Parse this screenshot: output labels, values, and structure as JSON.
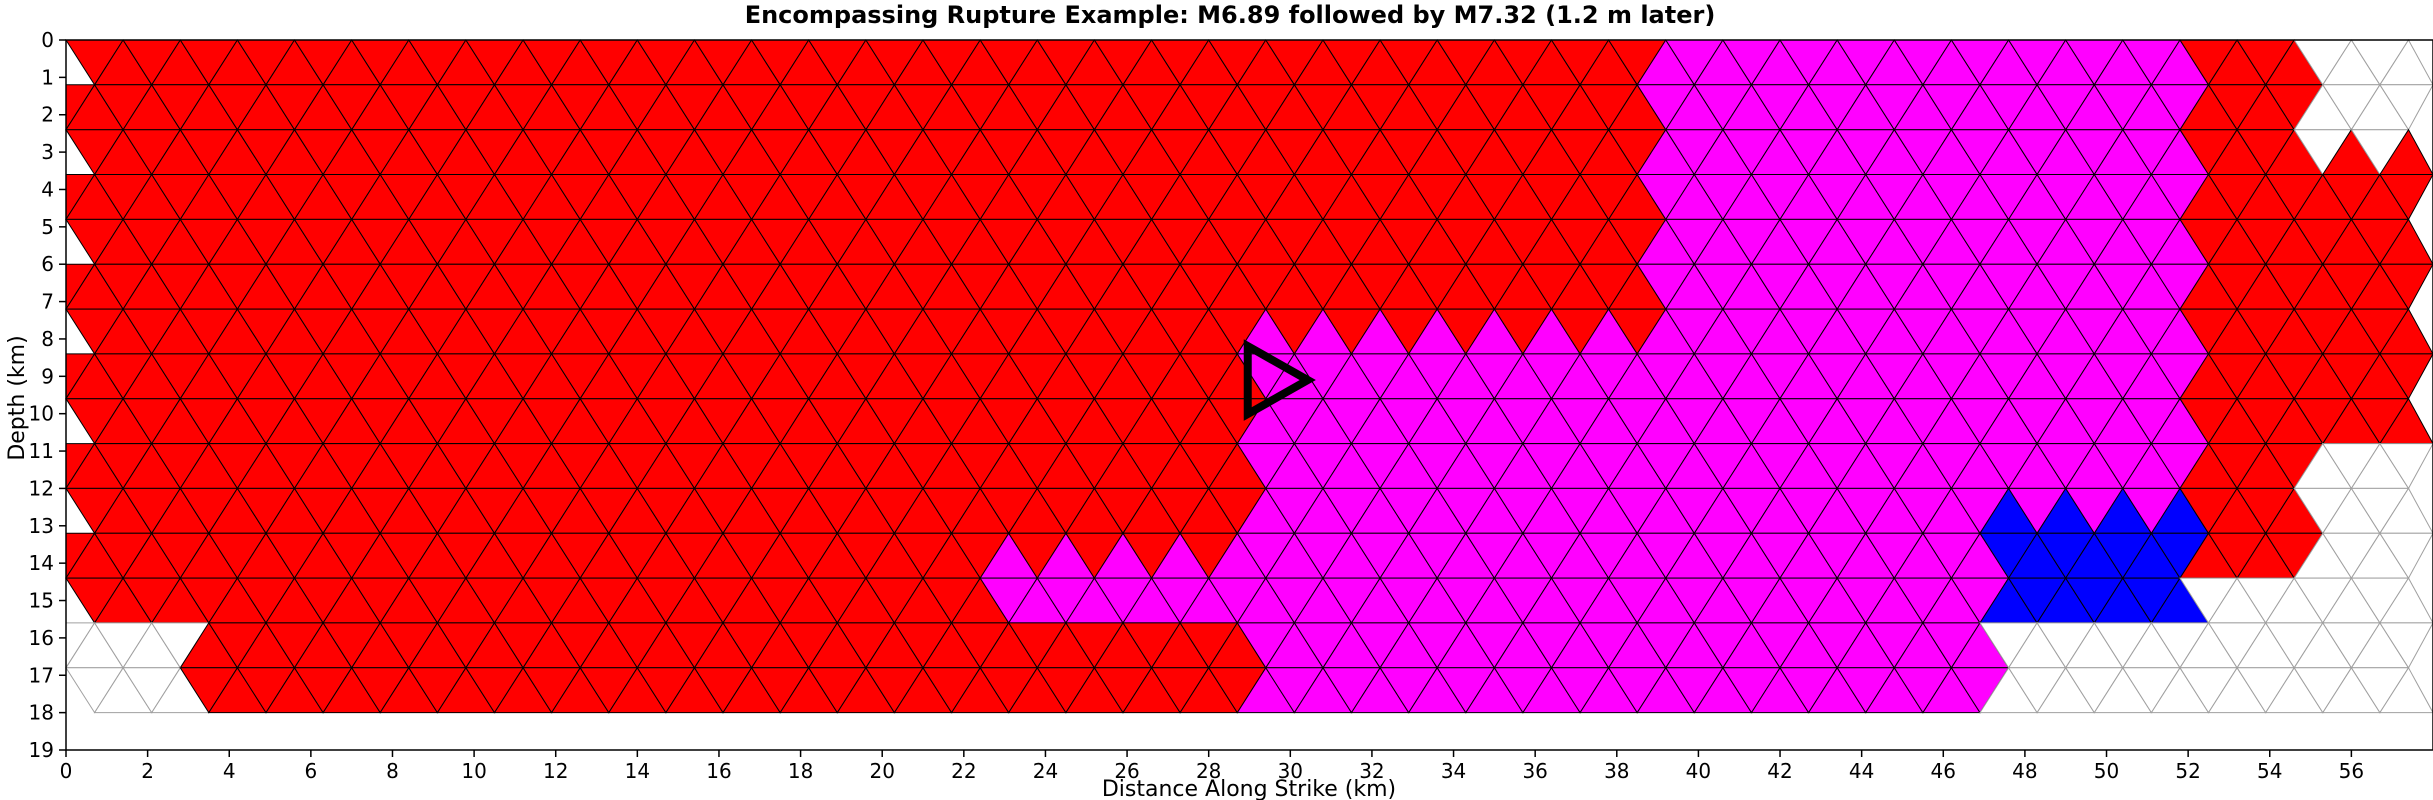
{
  "chart_data": {
    "type": "heatmap",
    "title": "Encompassing Rupture Example: M6.89 followed by M7.32 (1.2 m later)",
    "xlabel": "Distance Along Strike (km)",
    "ylabel": "Depth (km)",
    "xlim": [
      0,
      58
    ],
    "ylim": [
      19,
      0
    ],
    "x_ticks": [
      0,
      2,
      4,
      6,
      8,
      10,
      12,
      14,
      16,
      18,
      20,
      22,
      24,
      26,
      28,
      30,
      32,
      34,
      36,
      38,
      40,
      42,
      44,
      46,
      48,
      50,
      52,
      54,
      56
    ],
    "y_ticks": [
      0,
      1,
      2,
      3,
      4,
      5,
      6,
      7,
      8,
      9,
      10,
      11,
      12,
      13,
      14,
      15,
      16,
      17,
      18,
      19
    ],
    "mesh": {
      "element": "triangle",
      "x_spacing_km": 1.4,
      "depth_spacing_km": 1.2,
      "depth_range_km": [
        0,
        18
      ]
    },
    "legend": "none",
    "grid": false,
    "colors": {
      "first_event_only": "#ff0000",
      "second_event_only": "#ff00ff",
      "both_events": "#0000ff",
      "not_ruptured": "#ffffff",
      "element_edge": "#000000",
      "unruptured_edge": "#a0a0a0"
    },
    "zones": [
      {
        "category": "first_event_only",
        "x_km": [
          0,
          39
        ],
        "depth_km": [
          0,
          15.4
        ]
      },
      {
        "category": "first_event_only",
        "x_km": [
          3,
          32
        ],
        "depth_km": [
          15.4,
          18
        ]
      },
      {
        "category": "first_event_only",
        "x_km": [
          48,
          55
        ],
        "depth_km": [
          0,
          14
        ]
      },
      {
        "category": "first_event_only",
        "x_km": [
          53,
          58
        ],
        "depth_km": [
          3,
          11
        ]
      },
      {
        "category": "second_event_only",
        "x_km": [
          29,
          47
        ],
        "depth_km": [
          8,
          18
        ]
      },
      {
        "category": "second_event_only",
        "x_km": [
          39,
          52
        ],
        "depth_km": [
          0,
          13
        ]
      },
      {
        "category": "second_event_only",
        "x_km": [
          23,
          29
        ],
        "depth_km": [
          14,
          15.4
        ]
      },
      {
        "category": "both_events",
        "x_km": [
          47,
          52
        ],
        "depth_km": [
          12.5,
          15.4
        ]
      }
    ],
    "marker": {
      "shape": "triangle-right",
      "x_km": 29.3,
      "depth_km": 9.1
    }
  }
}
